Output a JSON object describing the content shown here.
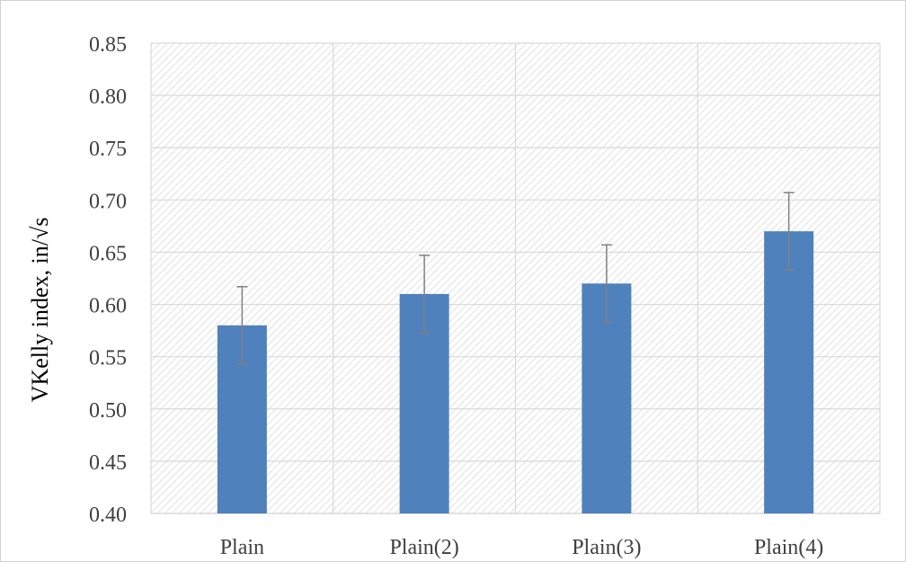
{
  "chart_data": {
    "type": "bar",
    "title": "",
    "xlabel": "",
    "ylabel": "VKelly index, in/√s",
    "categories": [
      "Plain",
      "Plain(2)",
      "Plain(3)",
      "Plain(4)"
    ],
    "values": [
      0.58,
      0.61,
      0.62,
      0.67
    ],
    "error_plus": [
      0.037,
      0.037,
      0.037,
      0.037
    ],
    "error_minus": [
      0.037,
      0.037,
      0.037,
      0.037
    ],
    "ylim": [
      0.4,
      0.85
    ],
    "yticks": [
      "0.40",
      "0.45",
      "0.50",
      "0.55",
      "0.60",
      "0.65",
      "0.70",
      "0.75",
      "0.80",
      "0.85"
    ],
    "ytick_values": [
      0.4,
      0.45,
      0.5,
      0.55,
      0.6,
      0.65,
      0.7,
      0.75,
      0.8,
      0.85
    ],
    "grid": true,
    "background_pattern": "diagonal-hatch",
    "colors": {
      "bar": "#4f81bd",
      "error_bar": "#808080",
      "grid": "#d9d9d9",
      "hatch": "#e6e6e6",
      "tick_text": "#404040"
    }
  }
}
